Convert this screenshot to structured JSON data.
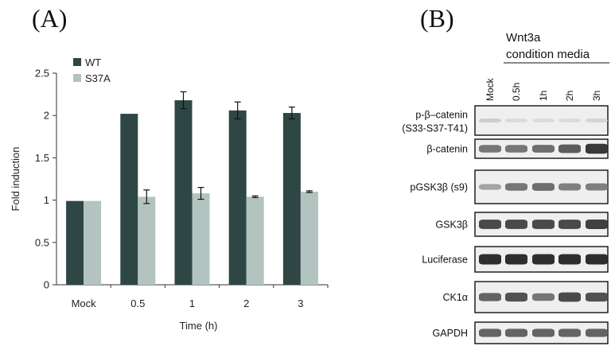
{
  "panel_a_label": "(A)",
  "panel_b_label": "(B)",
  "chart_data": {
    "type": "bar",
    "categories": [
      "Mock",
      "0.5",
      "1",
      "2",
      "3"
    ],
    "series": [
      {
        "name": "WT",
        "color": "#2e4744",
        "values": [
          0.99,
          2.02,
          2.18,
          2.06,
          2.03
        ],
        "errors": [
          0.0,
          0.0,
          0.1,
          0.1,
          0.07
        ]
      },
      {
        "name": "S37A",
        "color": "#b3c4c0",
        "values": [
          0.99,
          1.04,
          1.08,
          1.04,
          1.1
        ],
        "errors": [
          0.0,
          0.08,
          0.07,
          0.01,
          0.01
        ]
      }
    ],
    "xlabel": "Time (h)",
    "ylabel": "Fold induction",
    "ylim": [
      0,
      2.5
    ],
    "yticks": [
      "0",
      "0.5",
      "1",
      "1.5",
      "2",
      "2.5"
    ],
    "legend_position": "top-left"
  },
  "blot": {
    "treatment_line1": "Wnt3a",
    "treatment_line2": "condition media",
    "lanes": [
      "Mock",
      "0.5h",
      "1h",
      "2h",
      "3h"
    ],
    "rows": [
      {
        "label": "p-β–catenin",
        "label2": "(S33-S37-T41)",
        "intensities": [
          0.12,
          0.05,
          0.05,
          0.05,
          0.08
        ]
      },
      {
        "label": "β-catenin",
        "label2": "",
        "intensities": [
          0.6,
          0.6,
          0.65,
          0.75,
          0.95
        ]
      },
      {
        "label": "pGSK3β (s9)",
        "label2": "",
        "intensities": [
          0.35,
          0.6,
          0.65,
          0.55,
          0.55
        ]
      },
      {
        "label": "GSK3β",
        "label2": "",
        "intensities": [
          0.85,
          0.85,
          0.85,
          0.85,
          0.9
        ]
      },
      {
        "label": "Luciferase",
        "label2": "",
        "intensities": [
          1.0,
          1.0,
          1.0,
          1.0,
          1.0
        ]
      },
      {
        "label": "CK1α",
        "label2": "",
        "intensities": [
          0.7,
          0.8,
          0.6,
          0.85,
          0.8
        ]
      },
      {
        "label": "GAPDH",
        "label2": "",
        "intensities": [
          0.7,
          0.7,
          0.7,
          0.7,
          0.7
        ]
      }
    ]
  }
}
